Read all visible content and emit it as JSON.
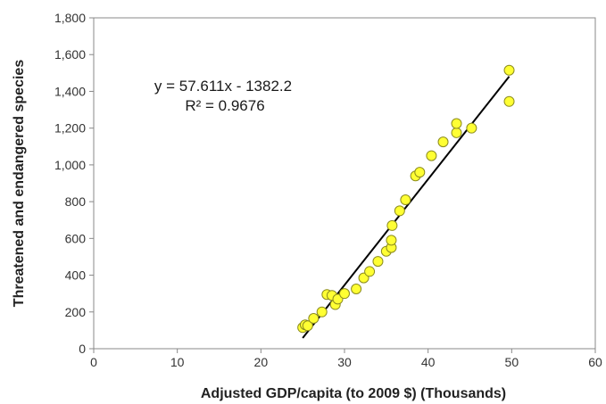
{
  "chart_data": {
    "type": "scatter",
    "xlabel": "Adjusted GDP/capita (to 2009 $) (Thousands)",
    "ylabel": "Threatened and endangered species",
    "xlim": [
      0,
      60
    ],
    "ylim": [
      0,
      1800
    ],
    "x_ticks": [
      0,
      10,
      20,
      30,
      40,
      50,
      60
    ],
    "y_ticks": [
      0,
      200,
      400,
      600,
      800,
      1000,
      1200,
      1400,
      1600,
      1800
    ],
    "x_tick_labels": [
      "0",
      "10",
      "20",
      "30",
      "40",
      "50",
      "60"
    ],
    "y_tick_labels": [
      "0",
      "200",
      "400",
      "600",
      "800",
      "1,000",
      "1,200",
      "1,400",
      "1,600",
      "1,800"
    ],
    "grid": false,
    "marker_color": "#ffff33",
    "marker_edge_color": "#8c8c1e",
    "trendline_color": "#000000",
    "points": [
      {
        "x": 25.0,
        "y": 115
      },
      {
        "x": 25.3,
        "y": 130
      },
      {
        "x": 25.6,
        "y": 125
      },
      {
        "x": 26.3,
        "y": 165
      },
      {
        "x": 27.3,
        "y": 200
      },
      {
        "x": 27.9,
        "y": 295
      },
      {
        "x": 28.5,
        "y": 290
      },
      {
        "x": 28.9,
        "y": 240
      },
      {
        "x": 29.2,
        "y": 270
      },
      {
        "x": 30.0,
        "y": 300
      },
      {
        "x": 31.4,
        "y": 325
      },
      {
        "x": 32.3,
        "y": 385
      },
      {
        "x": 33.0,
        "y": 420
      },
      {
        "x": 34.0,
        "y": 475
      },
      {
        "x": 35.0,
        "y": 530
      },
      {
        "x": 35.6,
        "y": 550
      },
      {
        "x": 35.6,
        "y": 590
      },
      {
        "x": 35.7,
        "y": 670
      },
      {
        "x": 36.6,
        "y": 750
      },
      {
        "x": 37.3,
        "y": 810
      },
      {
        "x": 38.5,
        "y": 940
      },
      {
        "x": 39.0,
        "y": 960
      },
      {
        "x": 40.4,
        "y": 1050
      },
      {
        "x": 41.8,
        "y": 1125
      },
      {
        "x": 43.4,
        "y": 1175
      },
      {
        "x": 43.4,
        "y": 1225
      },
      {
        "x": 45.2,
        "y": 1200
      },
      {
        "x": 49.7,
        "y": 1345
      },
      {
        "x": 49.7,
        "y": 1515
      }
    ],
    "trendline": {
      "slope": 57.611,
      "intercept": -1382.2,
      "x_range": [
        25.0,
        49.7
      ],
      "equation": "y = 57.611x - 1382.2",
      "r_squared": "R² = 0.9676"
    }
  }
}
